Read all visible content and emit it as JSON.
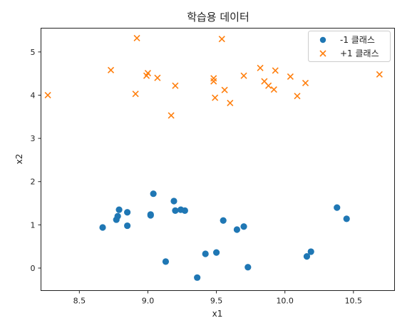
{
  "chart_data": {
    "type": "scatter",
    "title": "학습용 데이터",
    "xlabel": "x1",
    "ylabel": "x2",
    "xlim": [
      8.22,
      10.8
    ],
    "ylim": [
      -0.52,
      5.55
    ],
    "xticks": [
      8.5,
      9.0,
      9.5,
      10.0,
      10.5
    ],
    "yticks": [
      0,
      1,
      2,
      3,
      4,
      5
    ],
    "grid": false,
    "legend_position": "top-right",
    "series": [
      {
        "name": "-1 클래스",
        "marker": "circle",
        "color": "#1f77b4",
        "points": [
          [
            8.67,
            0.94
          ],
          [
            8.77,
            1.12
          ],
          [
            8.78,
            1.2
          ],
          [
            8.79,
            1.35
          ],
          [
            8.85,
            1.29
          ],
          [
            8.85,
            0.98
          ],
          [
            9.02,
            1.24
          ],
          [
            9.02,
            1.22
          ],
          [
            9.04,
            1.72
          ],
          [
            9.13,
            0.15
          ],
          [
            9.19,
            1.55
          ],
          [
            9.2,
            1.33
          ],
          [
            9.24,
            1.35
          ],
          [
            9.27,
            1.33
          ],
          [
            9.36,
            -0.22
          ],
          [
            9.42,
            0.33
          ],
          [
            9.5,
            0.36
          ],
          [
            9.55,
            1.1
          ],
          [
            9.65,
            0.89
          ],
          [
            9.7,
            0.96
          ],
          [
            9.73,
            0.02
          ],
          [
            10.16,
            0.27
          ],
          [
            10.19,
            0.38
          ],
          [
            10.38,
            1.4
          ],
          [
            10.45,
            1.14
          ]
        ]
      },
      {
        "name": "+1 클래스",
        "marker": "x",
        "color": "#ff7f0e",
        "points": [
          [
            8.27,
            4.0
          ],
          [
            8.73,
            4.58
          ],
          [
            8.91,
            4.03
          ],
          [
            8.92,
            5.32
          ],
          [
            8.99,
            4.45
          ],
          [
            9.0,
            4.51
          ],
          [
            9.07,
            4.4
          ],
          [
            9.17,
            3.53
          ],
          [
            9.2,
            4.22
          ],
          [
            9.48,
            4.32
          ],
          [
            9.48,
            4.39
          ],
          [
            9.49,
            3.94
          ],
          [
            9.54,
            5.3
          ],
          [
            9.56,
            4.12
          ],
          [
            9.6,
            3.82
          ],
          [
            9.7,
            4.45
          ],
          [
            9.82,
            4.63
          ],
          [
            9.85,
            4.32
          ],
          [
            9.88,
            4.22
          ],
          [
            9.92,
            4.13
          ],
          [
            9.93,
            4.57
          ],
          [
            10.04,
            4.43
          ],
          [
            10.09,
            3.98
          ],
          [
            10.15,
            4.28
          ],
          [
            10.69,
            4.48
          ]
        ]
      }
    ]
  }
}
